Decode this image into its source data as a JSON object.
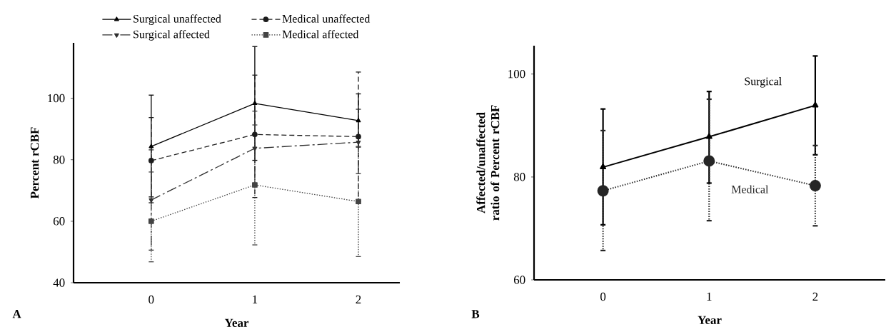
{
  "chart_data": [
    {
      "type": "line",
      "xlabel": "Year",
      "ylabel": "Percent rCBF",
      "x": [
        0,
        1,
        2
      ],
      "xlim": [
        -0.75,
        2.4
      ],
      "xticks": [
        0,
        1,
        2
      ],
      "ylim": [
        40,
        118
      ],
      "yticks": [
        40,
        60,
        80,
        100
      ],
      "legend": "top",
      "annotations": [
        "A"
      ],
      "series": [
        {
          "name": "Surgical unaffected",
          "color": "#000000",
          "marker": "triangle",
          "line_style": "solid",
          "values": [
            84.3,
            98.3,
            92.7
          ],
          "errors": [
            [
              67.9,
              101
            ],
            [
              79.8,
              116.8
            ],
            [
              84.1,
              101.4
            ]
          ]
        },
        {
          "name": "Medical unaffected",
          "color": "#1c1c1c",
          "marker": "circle",
          "line_style": "dashed",
          "values": [
            79.7,
            88.2,
            87.5
          ],
          "errors": [
            [
              66,
              93.7
            ],
            [
              67.7,
              107.5
            ],
            [
              66.5,
              108.5
            ]
          ]
        },
        {
          "name": "Surgical affected",
          "color": "#303030",
          "marker": "triangle down",
          "line_style": "dashdot",
          "values": [
            66.9,
            83.7,
            85.7
          ],
          "errors": [
            [
              50.6,
              83.2
            ],
            [
              71.7,
              95.8
            ],
            [
              75.5,
              96.4
            ]
          ]
        },
        {
          "name": "Medical affected",
          "color": "#444444",
          "marker": "square",
          "line_style": "dotted",
          "values": [
            60,
            71.8,
            66.4
          ],
          "errors": [
            [
              46.8,
              76
            ],
            [
              52.3,
              91.3
            ],
            [
              48.5,
              84.3
            ]
          ]
        }
      ]
    },
    {
      "type": "line",
      "xlabel": "Year",
      "ylabel": "Affected/unaffected ratio of Percent rCBF",
      "x": [
        0,
        1,
        2
      ],
      "xlim": [
        -0.65,
        2.66
      ],
      "xticks": [
        0,
        1,
        2
      ],
      "ylim": [
        60,
        105.5
      ],
      "yticks": [
        60,
        80,
        100
      ],
      "annotations": [
        "B"
      ],
      "series": [
        {
          "name": "Surgical",
          "color": "#000000",
          "marker": "triangle",
          "line_style": "solid",
          "values": [
            81.9,
            87.8,
            93.9
          ],
          "errors": [
            [
              70.7,
              93.2
            ],
            [
              78.8,
              96.6
            ],
            [
              84.3,
              103.5
            ]
          ]
        },
        {
          "name": "Medical",
          "color": "#262626",
          "marker": "circle",
          "line_style": "dotted",
          "values": [
            77.3,
            83.1,
            78.3
          ],
          "errors": [
            [
              65.7,
              89
            ],
            [
              71.5,
              95.1
            ],
            [
              70.5,
              86.1
            ]
          ]
        }
      ]
    }
  ]
}
